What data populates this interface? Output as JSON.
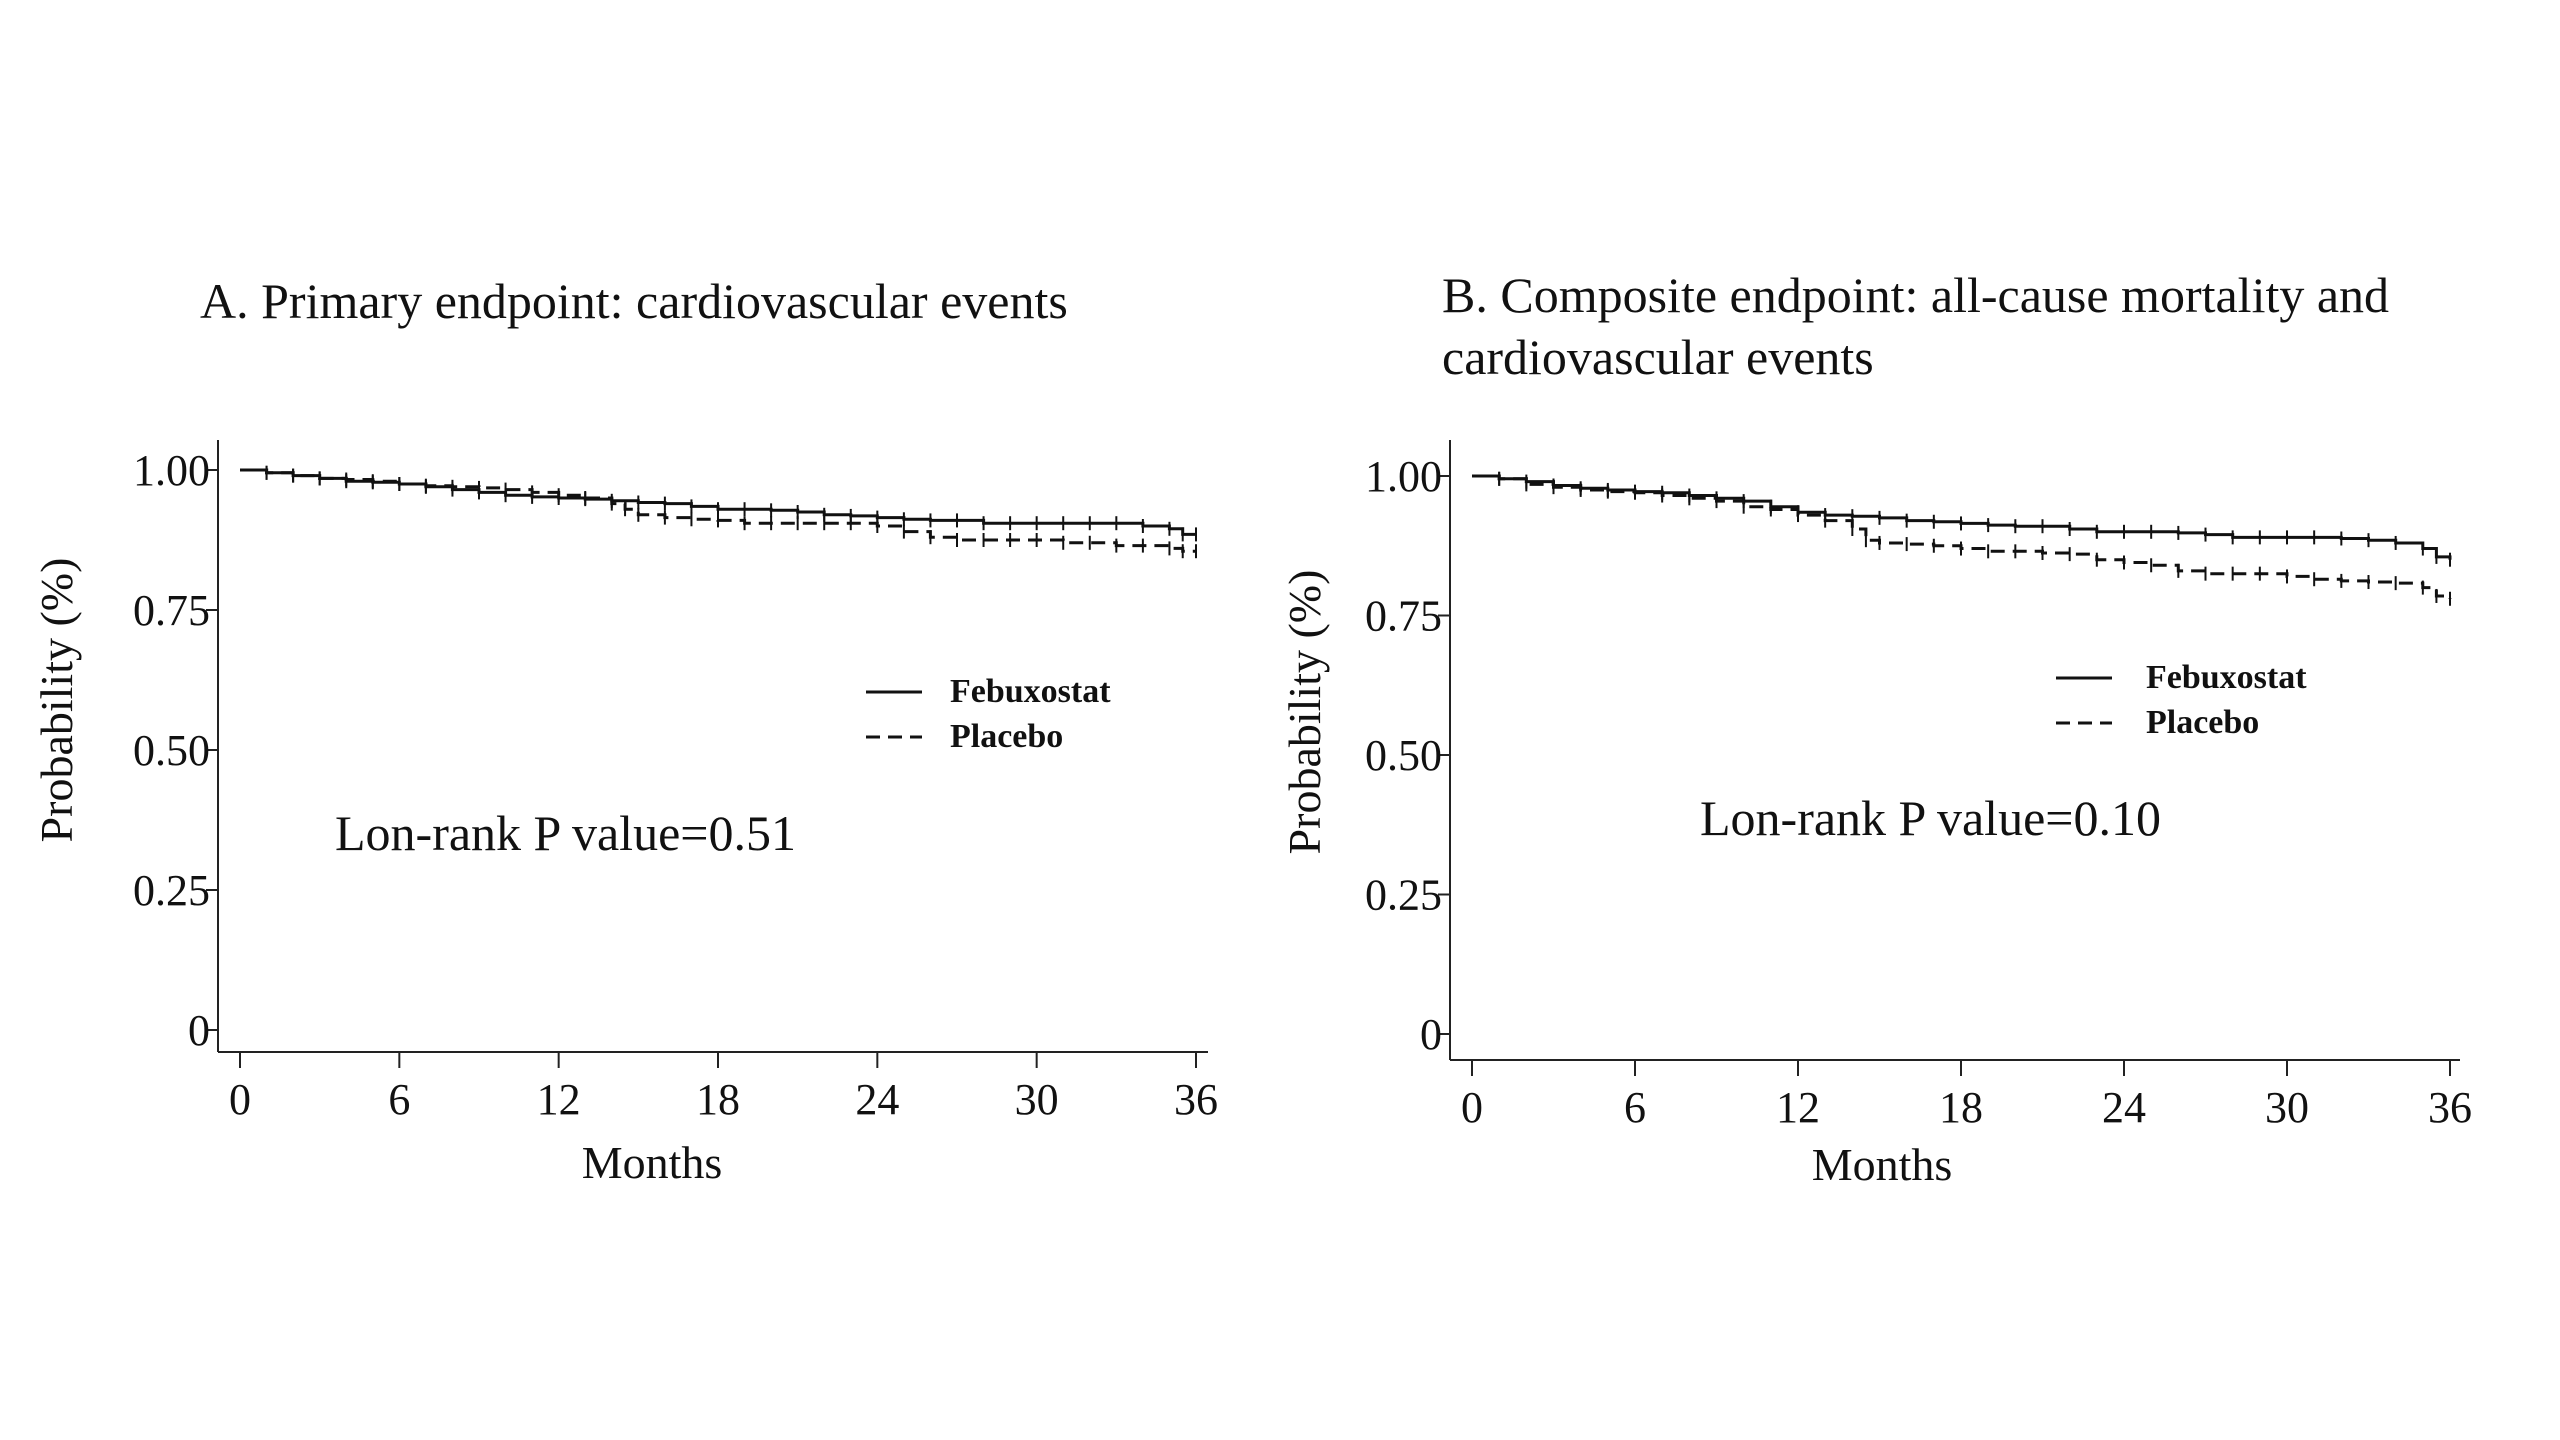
{
  "chart_data": [
    {
      "type": "line",
      "title_lines": [
        "A. Primary endpoint: cardiovascular events"
      ],
      "xlabel": "Months",
      "ylabel": "Probability (%)",
      "xlim": [
        0,
        36
      ],
      "ylim": [
        0,
        1
      ],
      "xticks": [
        0,
        6,
        12,
        18,
        24,
        30,
        36
      ],
      "xtick_labels": [
        "0",
        "6",
        "12",
        "18",
        "24",
        "30",
        "36"
      ],
      "yticks": [
        0,
        0.25,
        0.5,
        0.75,
        1
      ],
      "ytick_labels": [
        "0",
        "0.25",
        "0.50",
        "0.75",
        "1.00"
      ],
      "grid": false,
      "legend_placement": "right",
      "annotation": "Lon-rank P value=0.51",
      "series": [
        {
          "name": "Febuxostat",
          "style": "solid",
          "x": [
            0,
            1,
            2,
            3,
            4,
            5,
            6,
            7,
            8,
            9,
            10,
            11,
            12,
            13,
            14,
            15,
            16,
            17,
            18,
            19,
            20,
            21,
            22,
            23,
            24,
            25,
            26,
            27,
            28,
            29,
            30,
            31,
            32,
            33,
            34,
            35,
            35.5,
            36
          ],
          "y": [
            1.0,
            0.995,
            0.99,
            0.985,
            0.98,
            0.978,
            0.975,
            0.97,
            0.965,
            0.96,
            0.955,
            0.952,
            0.95,
            0.948,
            0.945,
            0.942,
            0.94,
            0.935,
            0.93,
            0.93,
            0.928,
            0.925,
            0.92,
            0.918,
            0.915,
            0.912,
            0.91,
            0.91,
            0.905,
            0.905,
            0.905,
            0.905,
            0.905,
            0.905,
            0.9,
            0.895,
            0.885,
            0.885
          ]
        },
        {
          "name": "Placebo",
          "style": "dashed",
          "x": [
            0,
            1,
            2,
            3,
            4,
            5,
            6,
            7,
            8,
            9,
            10,
            11,
            12,
            13,
            14,
            14.5,
            15,
            16,
            17,
            18,
            19,
            20,
            21,
            22,
            23,
            24,
            25,
            26,
            27,
            28,
            29,
            30,
            31,
            32,
            33,
            34,
            35,
            35.5,
            36
          ],
          "y": [
            1.0,
            0.995,
            0.99,
            0.985,
            0.983,
            0.98,
            0.975,
            0.972,
            0.97,
            0.968,
            0.965,
            0.96,
            0.955,
            0.95,
            0.94,
            0.93,
            0.92,
            0.915,
            0.912,
            0.91,
            0.905,
            0.905,
            0.905,
            0.905,
            0.905,
            0.9,
            0.89,
            0.88,
            0.875,
            0.875,
            0.875,
            0.875,
            0.87,
            0.87,
            0.865,
            0.865,
            0.86,
            0.855,
            0.855
          ]
        }
      ]
    },
    {
      "type": "line",
      "title_lines": [
        "B. Composite endpoint: all-cause mortality and",
        "cardiovascular events"
      ],
      "xlabel": "Months",
      "ylabel": "Probability (%)",
      "xlim": [
        0,
        36
      ],
      "ylim": [
        0,
        1
      ],
      "xticks": [
        0,
        6,
        12,
        18,
        24,
        30,
        36
      ],
      "xtick_labels": [
        "0",
        "6",
        "12",
        "18",
        "24",
        "30",
        "36"
      ],
      "yticks": [
        0,
        0.25,
        0.5,
        0.75,
        1
      ],
      "ytick_labels": [
        "0",
        "0.25",
        "0.50",
        "0.75",
        "1.00"
      ],
      "grid": false,
      "legend_placement": "right",
      "annotation": "Lon-rank P value=0.10",
      "series": [
        {
          "name": "Febuxostat",
          "style": "solid",
          "x": [
            0,
            1,
            2,
            3,
            4,
            5,
            6,
            7,
            8,
            9,
            10,
            11,
            12,
            13,
            14,
            15,
            16,
            17,
            18,
            19,
            20,
            21,
            22,
            23,
            24,
            25,
            26,
            27,
            28,
            29,
            30,
            31,
            32,
            33,
            34,
            35,
            35.5,
            36
          ],
          "y": [
            1.0,
            0.995,
            0.99,
            0.983,
            0.978,
            0.975,
            0.972,
            0.97,
            0.965,
            0.96,
            0.955,
            0.945,
            0.935,
            0.93,
            0.928,
            0.925,
            0.92,
            0.918,
            0.915,
            0.912,
            0.91,
            0.91,
            0.905,
            0.9,
            0.9,
            0.9,
            0.898,
            0.895,
            0.89,
            0.89,
            0.89,
            0.89,
            0.888,
            0.885,
            0.88,
            0.87,
            0.855,
            0.85
          ]
        },
        {
          "name": "Placebo",
          "style": "dashed",
          "x": [
            0,
            1,
            2,
            3,
            4,
            5,
            6,
            7,
            8,
            9,
            10,
            11,
            12,
            13,
            14,
            14.5,
            15,
            16,
            17,
            18,
            19,
            20,
            21,
            22,
            23,
            24,
            25,
            26,
            27,
            28,
            29,
            30,
            31,
            32,
            33,
            34,
            35,
            35.5,
            36
          ],
          "y": [
            1.0,
            0.995,
            0.985,
            0.98,
            0.975,
            0.972,
            0.97,
            0.965,
            0.96,
            0.955,
            0.945,
            0.94,
            0.93,
            0.92,
            0.905,
            0.885,
            0.88,
            0.878,
            0.875,
            0.87,
            0.865,
            0.865,
            0.862,
            0.86,
            0.85,
            0.845,
            0.84,
            0.83,
            0.825,
            0.825,
            0.825,
            0.82,
            0.815,
            0.812,
            0.81,
            0.808,
            0.8,
            0.785,
            0.78
          ]
        }
      ]
    }
  ]
}
